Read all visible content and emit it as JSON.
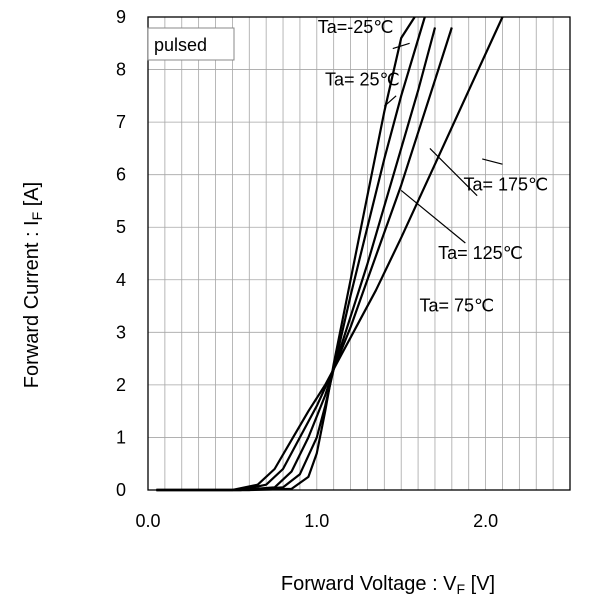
{
  "chart_data": {
    "type": "line",
    "xlabel": "Forward Voltage : V",
    "xlabel_sub": "F",
    "xlabel_unit": " [V]",
    "ylabel": "Forward Current : I",
    "ylabel_sub": "F",
    "ylabel_unit": " [A]",
    "xlim": [
      0,
      2.5
    ],
    "ylim": [
      0,
      9
    ],
    "x_ticks": [
      0.0,
      1.0,
      2.0
    ],
    "x_tick_labels": [
      "0.0",
      "1.0",
      "2.0"
    ],
    "y_ticks": [
      0,
      1,
      2,
      3,
      4,
      5,
      6,
      7,
      8,
      9
    ],
    "y_tick_labels": [
      "0",
      "1",
      "2",
      "3",
      "4",
      "5",
      "6",
      "7",
      "8",
      "9"
    ],
    "grid": true,
    "legend_box": "pulsed",
    "series": [
      {
        "name": "Ta=-25℃",
        "x": [
          0.05,
          0.6,
          0.85,
          0.95,
          1.0,
          1.05,
          1.1,
          1.2,
          1.3,
          1.4,
          1.5,
          1.58
        ],
        "y": [
          0,
          0,
          0.02,
          0.25,
          0.7,
          1.5,
          2.4,
          4.0,
          5.6,
          7.2,
          8.6,
          9.0
        ]
      },
      {
        "name": "Ta= 25℃",
        "x": [
          0.05,
          0.6,
          0.8,
          0.9,
          1.0,
          1.05,
          1.1,
          1.2,
          1.3,
          1.4,
          1.5,
          1.64
        ],
        "y": [
          0,
          0,
          0.05,
          0.3,
          1.0,
          1.6,
          2.3,
          3.7,
          5.0,
          6.3,
          7.5,
          9.0
        ]
      },
      {
        "name": "Ta= 75℃",
        "x": [
          0.05,
          0.55,
          0.75,
          0.85,
          0.95,
          1.05,
          1.1,
          1.2,
          1.3,
          1.4,
          1.5,
          1.6,
          1.7
        ],
        "y": [
          0,
          0,
          0.05,
          0.35,
          1.0,
          1.8,
          2.3,
          3.3,
          4.3,
          5.4,
          6.5,
          7.6,
          8.8
        ]
      },
      {
        "name": "Ta= 125℃",
        "x": [
          0.05,
          0.55,
          0.7,
          0.8,
          0.9,
          1.0,
          1.1,
          1.2,
          1.3,
          1.4,
          1.5,
          1.6,
          1.7,
          1.8
        ],
        "y": [
          0,
          0,
          0.1,
          0.4,
          1.0,
          1.6,
          2.3,
          3.1,
          4.0,
          4.9,
          5.8,
          6.8,
          7.8,
          8.8
        ]
      },
      {
        "name": "Ta= 175℃",
        "x": [
          0.05,
          0.5,
          0.65,
          0.75,
          0.85,
          0.95,
          1.05,
          1.15,
          1.25,
          1.35,
          1.5,
          1.7,
          1.9,
          2.1
        ],
        "y": [
          0,
          0,
          0.1,
          0.4,
          0.95,
          1.5,
          2.0,
          2.6,
          3.2,
          3.8,
          4.8,
          6.2,
          7.6,
          9.0
        ]
      }
    ],
    "annotations": [
      {
        "text": "Ta=-25℃",
        "x": 1.23,
        "y": 8.7
      },
      {
        "text": "Ta= 25℃",
        "x": 1.27,
        "y": 7.7
      },
      {
        "text": "Ta= 175℃",
        "x": 2.12,
        "y": 5.7
      },
      {
        "text": "Ta= 125℃",
        "x": 1.97,
        "y": 4.4
      },
      {
        "text": "Ta= 75℃",
        "x": 1.83,
        "y": 3.4
      }
    ],
    "leaders": [
      {
        "x1": 1.45,
        "y1": 8.4,
        "x2": 1.55,
        "y2": 8.5
      },
      {
        "x1": 1.4,
        "y1": 7.3,
        "x2": 1.47,
        "y2": 7.5
      },
      {
        "x1": 1.98,
        "y1": 6.3,
        "x2": 2.1,
        "y2": 6.2
      },
      {
        "x1": 1.67,
        "y1": 6.5,
        "x2": 1.95,
        "y2": 5.6
      },
      {
        "x1": 1.5,
        "y1": 5.7,
        "x2": 1.88,
        "y2": 4.7
      }
    ]
  }
}
